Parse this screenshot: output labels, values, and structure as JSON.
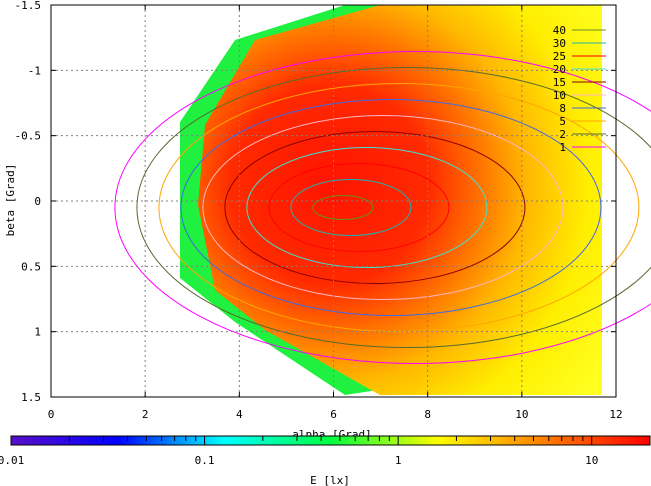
{
  "chart_data": {
    "type": "heatmap",
    "title": "",
    "xlabel": "alpha [Grad]",
    "ylabel": "beta [Grad]",
    "xlim": [
      0,
      12
    ],
    "ylim": [
      1.5,
      -1.5
    ],
    "x_ticks": [
      0,
      2,
      4,
      6,
      8,
      10,
      12
    ],
    "y_ticks": [
      -1.5,
      -1,
      -0.5,
      0,
      0.5,
      1,
      1.5
    ],
    "x_tick_labels": [
      "0",
      "2",
      "4",
      "6",
      "8",
      "10",
      "12"
    ],
    "y_tick_labels": [
      "-1.5",
      "-1",
      "-0.5",
      "0",
      "0.5",
      "1",
      "1.5"
    ],
    "grid": true,
    "legend_position": "top-right",
    "contour_levels": [
      {
        "label": "40",
        "color": "#6b8e23"
      },
      {
        "label": "30",
        "color": "#20b2aa"
      },
      {
        "label": "25",
        "color": "#ff0000"
      },
      {
        "label": "20",
        "color": "#40e0d0"
      },
      {
        "label": "15",
        "color": "#8b0000"
      },
      {
        "label": "10",
        "color": "#ffb6c1"
      },
      {
        "label": "8",
        "color": "#4169e1"
      },
      {
        "label": "5",
        "color": "#ffa500"
      },
      {
        "label": "2",
        "color": "#556b2f"
      },
      {
        "label": "1",
        "color": "#ff00ff"
      }
    ],
    "colorbar": {
      "label": "E [lx]",
      "scale": "log",
      "range": [
        0.01,
        20
      ],
      "tick_values": [
        0.01,
        0.1,
        1,
        10
      ],
      "tick_labels": [
        "0.01",
        "0.1",
        "1",
        "10"
      ],
      "colors": [
        "#5a0fc8",
        "#0000ff",
        "#00ffff",
        "#00ff40",
        "#ffff00",
        "#ff8000",
        "#ff0000"
      ]
    }
  }
}
